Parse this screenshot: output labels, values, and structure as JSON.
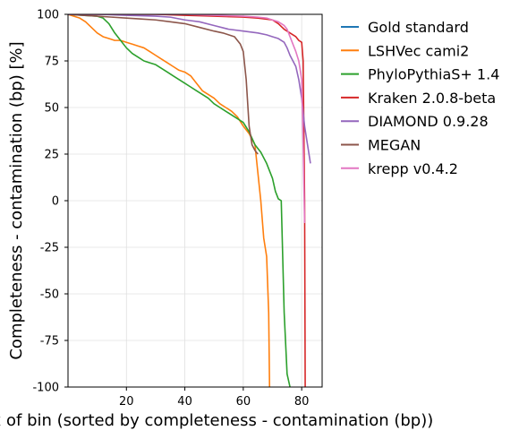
{
  "chart_data": {
    "type": "line",
    "title": "",
    "xlabel": "Index of bin (sorted by completeness - contamination (bp))",
    "ylabel": "Completeness - contamination (bp) [%]",
    "xlim": [
      0,
      87
    ],
    "ylim": [
      -100,
      100
    ],
    "xticks": [
      20,
      40,
      60,
      80
    ],
    "yticks": [
      -100,
      -75,
      -50,
      -25,
      0,
      25,
      50,
      75,
      100
    ],
    "grid": true,
    "legend_position": "outside-right",
    "series": [
      {
        "name": "Gold standard",
        "color": "#1f77b4",
        "x": [],
        "y": []
      },
      {
        "name": "LSHVec cami2",
        "color": "#ff7f0e",
        "x": [
          0,
          2,
          4,
          6,
          8,
          10,
          12,
          14,
          16,
          18,
          20,
          22,
          24,
          26,
          28,
          30,
          32,
          34,
          36,
          38,
          40,
          42,
          44,
          46,
          48,
          50,
          52,
          54,
          56,
          58,
          60,
          62,
          64,
          65,
          66,
          67,
          68,
          68.7,
          69
        ],
        "y": [
          100,
          99,
          98,
          96,
          93,
          90,
          88,
          87,
          86,
          86,
          85,
          84,
          83,
          82,
          80,
          78,
          76,
          74,
          72,
          70,
          69,
          67,
          63,
          59,
          57,
          55,
          52,
          50,
          48,
          45,
          40,
          36,
          30,
          15,
          0,
          -20,
          -30,
          -60,
          -100
        ]
      },
      {
        "name": "PhyloPythiaS+ 1.4",
        "color": "#2ca02c",
        "x": [
          0,
          5,
          10,
          12,
          14,
          16,
          18,
          20,
          22,
          24,
          26,
          28,
          30,
          32,
          34,
          36,
          38,
          40,
          42,
          44,
          46,
          48,
          50,
          52,
          54,
          56,
          58,
          60,
          62,
          64,
          66,
          68,
          70,
          71,
          72,
          73,
          74,
          75,
          76
        ],
        "y": [
          100,
          99.5,
          99,
          98,
          95,
          90,
          86,
          82,
          79,
          77,
          75,
          74,
          73,
          71,
          69,
          67,
          65,
          63,
          61,
          59,
          57,
          55,
          52,
          50,
          48,
          46,
          44,
          42,
          37,
          30,
          26,
          20,
          12,
          5,
          1,
          0,
          -60,
          -93,
          -100
        ]
      },
      {
        "name": "Kraken 2.0.8-beta",
        "color": "#d62728",
        "x": [
          0,
          10,
          20,
          30,
          40,
          50,
          60,
          65,
          70,
          72,
          74,
          76,
          78,
          79,
          80,
          80.5,
          81,
          81.2
        ],
        "y": [
          100,
          100,
          100,
          100,
          99.5,
          99,
          98.5,
          98,
          97,
          95,
          92,
          90,
          88,
          86,
          85,
          75,
          0,
          -100
        ]
      },
      {
        "name": "DIAMOND 0.9.28",
        "color": "#9467bd",
        "x": [
          0,
          10,
          20,
          30,
          35,
          40,
          45,
          50,
          55,
          60,
          65,
          68,
          70,
          72,
          74,
          75,
          76,
          77,
          78,
          79,
          80,
          81,
          82,
          83
        ],
        "y": [
          100,
          100,
          99.5,
          99,
          98.5,
          97,
          96,
          94,
          92,
          91,
          90,
          89,
          88,
          87,
          85,
          82,
          78,
          75,
          72,
          65,
          55,
          40,
          30,
          20
        ]
      },
      {
        "name": "MEGAN",
        "color": "#8c564b",
        "x": [
          0,
          5,
          10,
          15,
          20,
          25,
          30,
          35,
          40,
          45,
          50,
          53,
          55,
          57,
          58,
          59,
          60,
          61,
          62,
          63,
          64,
          65
        ],
        "y": [
          100,
          99.5,
          99,
          98.5,
          98,
          97.5,
          97,
          96,
          95,
          93,
          91,
          90,
          89,
          88,
          86,
          84,
          80,
          65,
          40,
          30,
          27,
          25
        ]
      },
      {
        "name": "krepp v0.4.2",
        "color": "#e377c2",
        "x": [
          0,
          10,
          20,
          30,
          40,
          50,
          60,
          65,
          68,
          70,
          72,
          74,
          75,
          76,
          77,
          78,
          79,
          80,
          80.5,
          81
        ],
        "y": [
          100,
          100,
          100,
          100,
          100,
          99.5,
          99,
          98.5,
          98,
          97,
          96,
          94,
          92,
          88,
          84,
          80,
          75,
          65,
          30,
          -12
        ]
      }
    ]
  }
}
